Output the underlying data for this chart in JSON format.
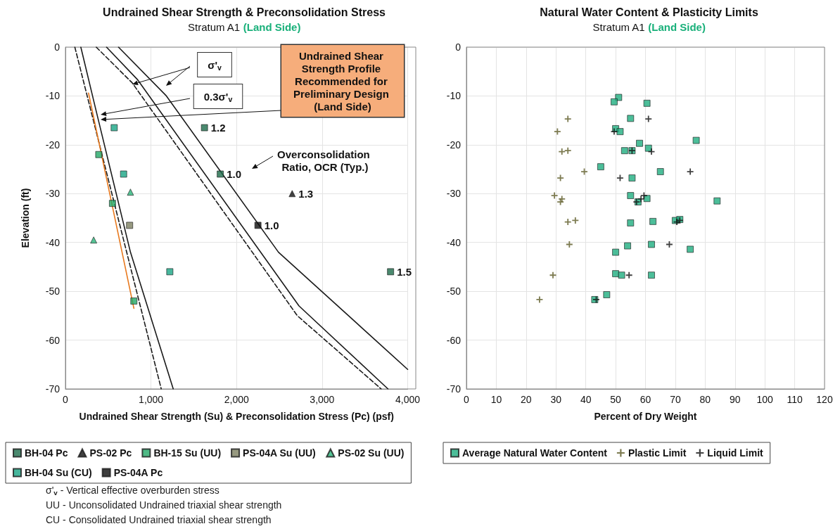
{
  "chart_data": [
    {
      "type": "scatter",
      "title": "Undrained Shear Strength & Preconsolidation Stress",
      "subtitle": "Stratum A1 (Land Side)",
      "xlabel": "Undrained Shear Strength (Su) & Preconsolidation Stress (Pc) (psf)",
      "ylabel": "Elevation (ft)",
      "xlim": [
        0,
        4000
      ],
      "xticks": [
        0,
        {
          "value": 1000,
          "label": "1,000"
        },
        {
          "value": 2000,
          "label": "2,000"
        },
        {
          "value": 3000,
          "label": "3,000"
        },
        {
          "value": 4000,
          "label": "4,000"
        }
      ],
      "ylim": [
        -70,
        0
      ],
      "yticks": [
        -70,
        -60,
        -50,
        -40,
        -30,
        -20,
        -10,
        0
      ],
      "grid": true,
      "legend": "bottom",
      "series": [
        {
          "type": "line",
          "color": "#1a1a1a",
          "line_style": "solid",
          "x": [
            620,
            1180,
            2490,
            4000
          ],
          "values": [
            0,
            -10,
            -42,
            -66
          ]
        },
        {
          "type": "line",
          "color": "#1a1a1a",
          "line_style": "solid",
          "x": [
            480,
            840,
            2730,
            3770
          ],
          "values": [
            0,
            -6.6,
            -53,
            -70
          ]
        },
        {
          "type": "line",
          "color": "#1a1a1a",
          "line_style": "dashed",
          "x": [
            360,
            780,
            2710,
            3690
          ],
          "values": [
            0,
            -7.3,
            -55,
            -70
          ]
        },
        {
          "type": "line",
          "color": "#1a1a1a",
          "line_style": "solid",
          "x": [
            180,
            350,
            760,
            1260
          ],
          "values": [
            0,
            -12.4,
            -42,
            -70
          ]
        },
        {
          "type": "line",
          "color": "#1a1a1a",
          "line_style": "dashed",
          "x": [
            110,
            1120
          ],
          "values": [
            0,
            -70
          ]
        },
        {
          "type": "line",
          "color": "#e8791e",
          "line_style": "solid",
          "x": [
            270,
            800
          ],
          "values": [
            -9.4,
            -53.5
          ]
        },
        {
          "name": "BH-04 Pc",
          "color": "#1d6b4a",
          "marker": "square",
          "x": [
            1625,
            1810,
            3800
          ],
          "values": [
            -16.5,
            -26,
            -46
          ]
        },
        {
          "name": "PS-02 Pc",
          "color": "#111111",
          "marker": "triangle",
          "x": [
            2650
          ],
          "values": [
            -30
          ]
        },
        {
          "name": "BH-15 Su (UU)",
          "color": "#22a866",
          "marker": "square",
          "x": [
            390,
            550,
            800
          ],
          "values": [
            -22,
            -32,
            -52
          ]
        },
        {
          "name": "PS-04A Su (UU)",
          "color": "#7d8060",
          "marker": "square",
          "x": [
            750
          ],
          "values": [
            -36.5
          ]
        },
        {
          "name": "PS-02 Su (UU)",
          "color": "#2bb57a",
          "marker": "triangle",
          "x": [
            330,
            760
          ],
          "values": [
            -39.5,
            -29.7
          ]
        },
        {
          "name": "BH-04 Su (CU)",
          "color": "#19a585",
          "marker": "square",
          "x": [
            570,
            680,
            1220
          ],
          "values": [
            -16.5,
            -26,
            -46
          ]
        },
        {
          "name": "PS-04A Pc",
          "color": "#0d0d0d",
          "marker": "square",
          "x": [
            2250
          ],
          "values": [
            -36.5
          ]
        }
      ],
      "annotations": [
        {
          "text": "1.2",
          "x": 1625,
          "y": -16.5
        },
        {
          "text": "1.0",
          "x": 1810,
          "y": -26
        },
        {
          "text": "1.5",
          "x": 3800,
          "y": -46
        },
        {
          "text": "1.3",
          "x": 2650,
          "y": -30
        },
        {
          "text": "1.0",
          "x": 2250,
          "y": -36.5
        },
        "σ'$_{v}$",
        "0.3σ'$_{v}$",
        "Undrained Shear Strength Profile Recommended for Preliminary Design (Land Side)",
        "Overconsolidation Ratio, OCR (Typ.)",
        "σ'$_{v}$ - Vertical effective overburden stress",
        "UU - Unconsolidated Undrained triaxial shear strength",
        "CU - Consolidated Undrained triaxial shear strength"
      ]
    },
    {
      "type": "scatter",
      "title": "Natural Water Content & Plasticity Limits",
      "subtitle": "Stratum A1 (Land Side)",
      "xlabel": "Percent of Dry Weight",
      "xlim": [
        0,
        120
      ],
      "xticks": [
        0,
        10,
        20,
        30,
        40,
        50,
        60,
        70,
        80,
        90,
        100,
        110,
        120
      ],
      "ylim": [
        -70,
        0
      ],
      "yticks": [
        -70,
        -60,
        -50,
        -40,
        -30,
        -20,
        -10,
        0
      ],
      "grid": true,
      "legend": "bottom",
      "series": [
        {
          "name": "Average Natural Water Content",
          "color": "#1fae7f",
          "marker": "square",
          "x": [
            51,
            49.5,
            60.5,
            55,
            50,
            51.5,
            77,
            58,
            61,
            53,
            55.5,
            45,
            65,
            55.5,
            55,
            60.5,
            84,
            57.5,
            55,
            62.5,
            70,
            71.5,
            62,
            54,
            75,
            50,
            50,
            52,
            62,
            47,
            43
          ],
          "values": [
            -10.3,
            -11.2,
            -11.5,
            -14.6,
            -16.7,
            -17.3,
            -19.1,
            -19.7,
            -20.7,
            -21.2,
            -21.2,
            -24.5,
            -25.5,
            -26.8,
            -30.4,
            -31,
            -31.5,
            -31.7,
            -36,
            -35.7,
            -35.5,
            -35.3,
            -40.4,
            -40.7,
            -41.4,
            -42,
            -46.4,
            -46.7,
            -46.7,
            -50.7,
            -51.7
          ]
        },
        {
          "name": "Plastic Limit",
          "color": "#5c5a26",
          "marker": "cross",
          "x": [
            34,
            30.5,
            32,
            34,
            39.5,
            31.5,
            29.5,
            32,
            31.5,
            34,
            36.5,
            34.5,
            29,
            24.5
          ],
          "values": [
            -14.7,
            -17.3,
            -21.4,
            -21.2,
            -25.5,
            -26.8,
            -30.4,
            -31.1,
            -31.7,
            -35.8,
            -35.5,
            -40.4,
            -46.7,
            -51.7
          ]
        },
        {
          "name": "Liquid Limit",
          "color": "#111111",
          "marker": "cross",
          "x": [
            61,
            49.5,
            55.5,
            62,
            75,
            51.5,
            59.5,
            58.5,
            57,
            70.5,
            71.5,
            68,
            54.5,
            43.5
          ],
          "values": [
            -14.7,
            -17.3,
            -21.2,
            -21.4,
            -25.5,
            -26.8,
            -30.4,
            -31.1,
            -31.7,
            -35.8,
            -35.5,
            -40.4,
            -46.7,
            -51.7
          ]
        }
      ]
    }
  ]
}
